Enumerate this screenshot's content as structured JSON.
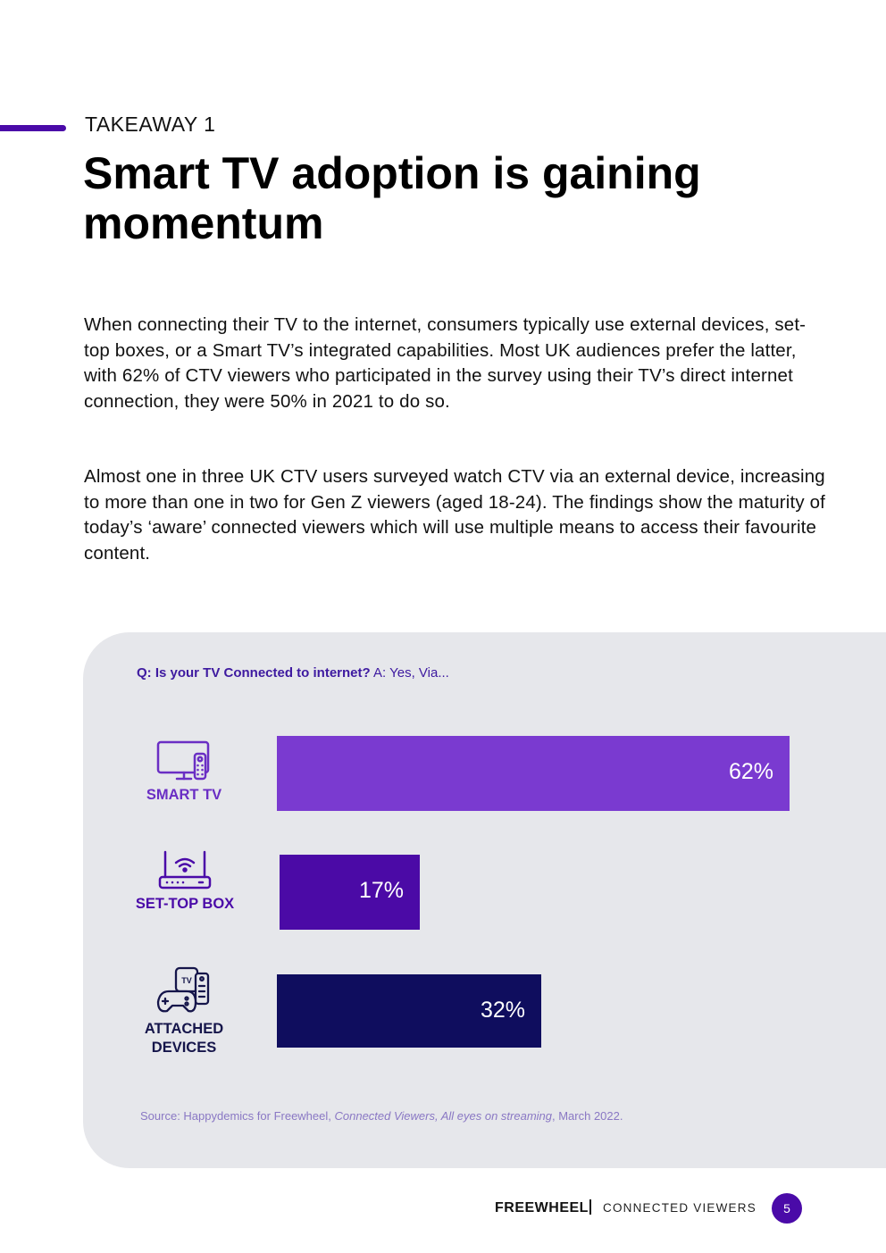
{
  "header": {
    "kicker": "TAKEAWAY 1",
    "title": "Smart TV adoption is gaining momentum"
  },
  "body": {
    "paragraph_1": "When connecting their TV to the internet, consumers typically use external devices, set-top boxes, or a Smart TV’s integrated capabilities. Most UK audiences prefer the latter, with 62% of CTV viewers who participated in the survey using their TV’s direct internet connection, they were 50% in 2021 to do so.",
    "paragraph_2": "Almost one in three UK CTV users surveyed watch CTV via an external device, increasing to more than one in two for Gen Z viewers (aged 18-24). The findings show the maturity of today’s ‘aware’ connected viewers which will use multiple means to access their favourite content."
  },
  "chart_data": {
    "type": "bar",
    "orientation": "horizontal",
    "question": "Q: Is your TV Connected to internet?",
    "answer": "A: Yes, Via...",
    "categories": [
      "SMART TV",
      "SET-TOP BOX",
      "ATTACHED DEVICES"
    ],
    "values": [
      62,
      17,
      32
    ],
    "value_labels": [
      "62%",
      "17%",
      "32%"
    ],
    "colors": [
      "#7a3ad0",
      "#4b0aa6",
      "#0f0d5e"
    ],
    "label_colors": [
      "#6a2ec4",
      "#4a0aa8",
      "#15154a"
    ],
    "icons": [
      "smart-tv-icon",
      "router-icon",
      "devices-icon"
    ],
    "xlim": [
      0,
      62
    ]
  },
  "source": {
    "prefix": "Source: Happydemics for Freewheel, ",
    "italic": "Connected Viewers, All eyes on streaming",
    "suffix": ", March 2022."
  },
  "footer": {
    "logo": "FREEWHEEL",
    "text": "CONNECTED VIEWERS",
    "page": "5"
  },
  "colors": {
    "accent": "#4a0aa8",
    "panel": "#e6e7eb"
  }
}
